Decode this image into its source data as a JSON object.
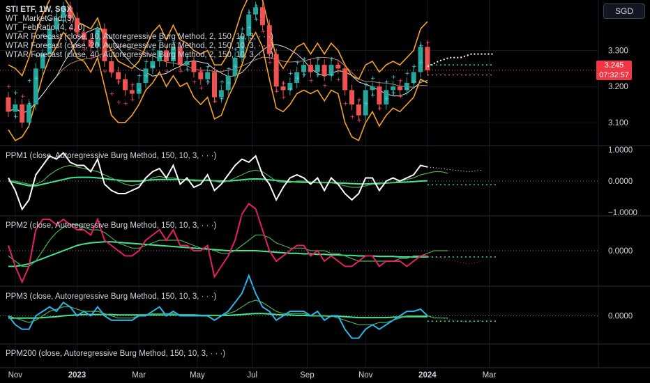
{
  "header": {
    "symbol_title": "STI ETF, 1W, SGX",
    "indicators": [
      "WT_MarketGrid (3)",
      "WT_FebRatio (4, 4, 0)",
      "WTAR Forecast (close, 10, Autoregressive Burg Method, 2, 150, 10, 3, · · ·)",
      "WTAR Forecast (close, 20, Autoregressive Burg Method, 2, 150, 10, 3, · · ·)",
      "WTAR Forecast (close, 40, Autoregressive Burg Method, 2, 150, 10, 3, · · ·)"
    ],
    "currency": "SGD"
  },
  "price_badge": {
    "price": "3.245",
    "countdown": "07:32:57",
    "color": "#f23645"
  },
  "panes": [
    {
      "id": "PPM1",
      "label": "PPM1 (close, Autoregressive Burg Method, 150, 10, 3, · · ·)",
      "ticks": [
        "1.0000",
        "0.0000",
        "−1.0000"
      ]
    },
    {
      "id": "PPM2",
      "label": "PPM2 (close, Autoregressive Burg Method, 150, 10, 3, · · ·)",
      "ticks": [
        "0.0000"
      ]
    },
    {
      "id": "PPM3",
      "label": "PPM3 (close, Autoregressive Burg Method, 150, 10, 3, · · ·)",
      "ticks": [
        "0.0000"
      ]
    },
    {
      "id": "PPM200",
      "label": "PPM200 (close, Autoregressive Burg Method, 150, 10, 3, · · ·)",
      "ticks": []
    }
  ],
  "colors": {
    "up": "#26a69a",
    "down": "#ef5350",
    "envelope": "#f7a325",
    "ppm1": "#ffffff",
    "ppm2": "#e91e63",
    "ppm3": "#2cb5e8",
    "green_light": "#43e695",
    "green_dark": "#4caf50",
    "background": "#000000",
    "axis_text": "#d1d4dc"
  },
  "chart_data": {
    "type": "candlestick",
    "price_axis": {
      "ticks": [
        3.1,
        3.2,
        3.3
      ],
      "tick_labels": [
        "3.100",
        "3.200",
        "3.300"
      ],
      "range": [
        3.04,
        3.44
      ]
    },
    "x_axis": {
      "labels": [
        "Nov",
        "2023",
        "Mar",
        "May",
        "Jul",
        "Sep",
        "Nov",
        "2024",
        "Mar"
      ],
      "bold": [
        "2023",
        "2024"
      ],
      "label_weeks": [
        1,
        10,
        19,
        27.5,
        35.5,
        43.5,
        52,
        61,
        70
      ]
    },
    "weekly_close": [
      3.13,
      3.15,
      3.1,
      3.15,
      3.25,
      3.29,
      3.36,
      3.39,
      3.42,
      3.39,
      3.35,
      3.33,
      3.31,
      3.36,
      3.27,
      3.24,
      3.22,
      3.19,
      3.18,
      3.21,
      3.25,
      3.27,
      3.3,
      3.27,
      3.31,
      3.26,
      3.27,
      3.24,
      3.22,
      3.24,
      3.17,
      3.19,
      3.23,
      3.28,
      3.34,
      3.4,
      3.42,
      3.37,
      3.29,
      3.2,
      3.19,
      3.21,
      3.24,
      3.26,
      3.24,
      3.26,
      3.23,
      3.26,
      3.25,
      3.19,
      3.15,
      3.12,
      3.19,
      3.2,
      3.15,
      3.19,
      3.2,
      3.19,
      3.21,
      3.24,
      3.31,
      3.245
    ],
    "forecast_close": [
      3.26,
      3.27,
      3.27,
      3.28,
      3.28,
      3.28
    ],
    "envelope_upper": [
      3.26,
      3.25,
      3.23,
      3.28,
      3.35,
      3.4,
      3.44,
      3.46,
      3.45,
      3.42,
      3.38,
      3.37,
      3.36,
      3.39,
      3.33,
      3.3,
      3.27,
      3.26,
      3.25,
      3.27,
      3.31,
      3.35,
      3.37,
      3.33,
      3.37,
      3.33,
      3.32,
      3.3,
      3.29,
      3.3,
      3.26,
      3.26,
      3.29,
      3.35,
      3.41,
      3.45,
      3.46,
      3.44,
      3.36,
      3.28,
      3.25,
      3.28,
      3.31,
      3.32,
      3.29,
      3.32,
      3.29,
      3.32,
      3.3,
      3.26,
      3.23,
      3.22,
      3.26,
      3.27,
      3.24,
      3.26,
      3.27,
      3.26,
      3.28,
      3.3,
      3.36,
      3.38
    ],
    "envelope_lower": [
      3.08,
      3.05,
      3.06,
      3.09,
      3.16,
      3.23,
      3.28,
      3.31,
      3.35,
      3.33,
      3.28,
      3.27,
      3.24,
      3.28,
      3.2,
      3.12,
      3.1,
      3.1,
      3.12,
      3.15,
      3.19,
      3.21,
      3.24,
      3.2,
      3.23,
      3.2,
      3.21,
      3.17,
      3.15,
      3.17,
      3.11,
      3.12,
      3.17,
      3.21,
      3.26,
      3.32,
      3.35,
      3.31,
      3.22,
      3.14,
      3.13,
      3.15,
      3.18,
      3.19,
      3.18,
      3.19,
      3.16,
      3.19,
      3.18,
      3.1,
      3.06,
      3.05,
      3.1,
      3.13,
      3.09,
      3.12,
      3.14,
      3.13,
      3.15,
      3.17,
      3.22,
      3.21
    ],
    "ppm1": {
      "range": [
        -1,
        1
      ],
      "series": [
        {
          "values": [
            0.1,
            -0.3,
            -0.9,
            -0.6,
            0.2,
            0.5,
            0.8,
            0.7,
            0.9,
            0.6,
            0.5,
            0.5,
            0.3,
            0.7,
            -0.1,
            -0.3,
            -0.4,
            -0.4,
            -0.3,
            -0.2,
            0.1,
            0.3,
            0.4,
            0.1,
            0.5,
            -0.1,
            0.1,
            -0.2,
            -0.1,
            0.2,
            -0.3,
            -0.1,
            0.2,
            0.5,
            0.7,
            0.6,
            0.8,
            0.2,
            -0.1,
            -0.6,
            -0.2,
            0.1,
            0.2,
            0.1,
            -0.1,
            0.1,
            -0.3,
            0.1,
            -0.1,
            -0.4,
            -0.6,
            -0.4,
            0.1,
            0.1,
            -0.3,
            0.0,
            0.1,
            0.0,
            0.1,
            0.2,
            0.5,
            0.45
          ]
        },
        {
          "values": [
            0.0,
            0.0,
            -0.05,
            -0.1,
            -0.1,
            0.0,
            0.2,
            0.35,
            0.45,
            0.5,
            0.45,
            0.4,
            0.35,
            0.3,
            0.2,
            0.1,
            0.0,
            -0.1,
            -0.15,
            -0.1,
            0.0,
            0.1,
            0.15,
            0.1,
            0.1,
            0.05,
            0.05,
            0.0,
            0.0,
            0.05,
            0.0,
            -0.05,
            0.0,
            0.1,
            0.2,
            0.3,
            0.35,
            0.3,
            0.15,
            0.0,
            -0.05,
            -0.05,
            0.0,
            0.0,
            -0.05,
            -0.05,
            -0.05,
            -0.05,
            -0.1,
            -0.15,
            -0.2,
            -0.2,
            -0.15,
            -0.1,
            -0.1,
            -0.05,
            -0.05,
            0.0,
            0.05,
            0.1,
            0.2,
            0.25,
            0.3,
            0.3,
            0.25
          ]
        },
        {
          "values": [
            0.0,
            -0.05,
            -0.1,
            -0.15,
            -0.15,
            -0.1,
            -0.05,
            0.0,
            0.05,
            0.1,
            0.12,
            0.12,
            0.12,
            0.1,
            0.08,
            0.05,
            0.03,
            0.0,
            0.0,
            0.0,
            0.02,
            0.04,
            0.05,
            0.05,
            0.05,
            0.05,
            0.04,
            0.03,
            0.02,
            0.02,
            0.01,
            0.0,
            0.0,
            0.02,
            0.04,
            0.06,
            0.07,
            0.06,
            0.04,
            0.02,
            0.0,
            -0.02,
            -0.03,
            -0.04,
            -0.04,
            -0.05,
            -0.05,
            -0.05,
            -0.06,
            -0.07,
            -0.08,
            -0.09,
            -0.09,
            -0.08,
            -0.07,
            -0.06,
            -0.05,
            -0.04,
            -0.03,
            -0.02,
            0.0,
            0.01
          ]
        }
      ]
    },
    "ppm2": {
      "series": [
        {
          "values": [
            0.1,
            -0.3,
            -0.6,
            -0.3,
            0.4,
            0.6,
            0.6,
            0.5,
            0.6,
            0.5,
            0.4,
            0.4,
            0.3,
            0.6,
            0.2,
            0.1,
            0.0,
            -0.1,
            -0.1,
            0.0,
            0.2,
            0.3,
            0.4,
            0.2,
            0.4,
            0.1,
            0.1,
            0.0,
            0.0,
            0.1,
            -0.5,
            -0.3,
            -0.1,
            0.2,
            0.7,
            0.9,
            0.8,
            0.4,
            0.0,
            -0.2,
            -0.1,
            0.0,
            0.1,
            0.1,
            -0.1,
            0.0,
            -0.2,
            -0.1,
            -0.2,
            -0.3,
            -0.3,
            -0.2,
            -0.1,
            -0.1,
            -0.3,
            -0.2,
            -0.2,
            -0.2,
            -0.3,
            -0.2,
            -0.1,
            -0.1
          ]
        },
        {
          "values": [
            -0.1,
            -0.2,
            -0.3,
            -0.3,
            -0.2,
            0.0,
            0.2,
            0.35,
            0.45,
            0.5,
            0.5,
            0.45,
            0.4,
            0.4,
            0.35,
            0.25,
            0.15,
            0.1,
            0.05,
            0.05,
            0.1,
            0.15,
            0.2,
            0.2,
            0.2,
            0.2,
            0.15,
            0.1,
            0.05,
            0.05,
            0.0,
            -0.05,
            -0.05,
            0.0,
            0.1,
            0.2,
            0.3,
            0.3,
            0.25,
            0.15,
            0.1,
            0.05,
            0.05,
            0.05,
            0.0,
            0.0,
            0.0,
            -0.05,
            -0.05,
            -0.1,
            -0.15,
            -0.2,
            -0.2,
            -0.2,
            -0.2,
            -0.2,
            -0.2,
            -0.15,
            -0.15,
            -0.1,
            -0.1,
            -0.05,
            0.0,
            0.0,
            0.0
          ]
        },
        {
          "values": [
            -0.3,
            -0.3,
            -0.28,
            -0.25,
            -0.2,
            -0.15,
            -0.1,
            -0.05,
            0.0,
            0.05,
            0.1,
            0.13,
            0.15,
            0.16,
            0.17,
            0.17,
            0.16,
            0.15,
            0.14,
            0.13,
            0.12,
            0.11,
            0.1,
            0.09,
            0.08,
            0.07,
            0.06,
            0.05,
            0.04,
            0.03,
            0.02,
            0.01,
            0.0,
            0.0,
            0.0,
            0.0,
            0.0,
            -0.01,
            -0.02,
            -0.03,
            -0.04,
            -0.05,
            -0.05,
            -0.06,
            -0.06,
            -0.07,
            -0.07,
            -0.08,
            -0.08,
            -0.09,
            -0.09,
            -0.1,
            -0.1,
            -0.1,
            -0.11,
            -0.11,
            -0.11,
            -0.12,
            -0.12,
            -0.12,
            -0.12,
            -0.12
          ]
        }
      ]
    },
    "ppm3": {
      "series": [
        {
          "values": [
            0.0,
            -0.2,
            -0.3,
            -0.3,
            0.0,
            0.1,
            0.2,
            0.1,
            0.3,
            0.2,
            0.0,
            0.1,
            0.0,
            0.2,
            0.0,
            -0.1,
            -0.1,
            -0.1,
            -0.1,
            0.0,
            0.0,
            0.1,
            0.2,
            0.0,
            0.1,
            0.0,
            0.0,
            0.0,
            0.0,
            0.0,
            -0.1,
            0.0,
            0.1,
            0.3,
            0.5,
            0.9,
            0.5,
            0.2,
            0.1,
            -0.1,
            0.0,
            0.1,
            0.1,
            0.1,
            0.0,
            0.1,
            -0.1,
            0.0,
            0.0,
            -0.3,
            -0.5,
            -0.5,
            -0.3,
            -0.2,
            -0.3,
            -0.2,
            -0.1,
            0.0,
            0.1,
            0.1,
            0.15,
            0.0
          ]
        },
        {
          "values": [
            0.0,
            -0.05,
            -0.1,
            -0.15,
            -0.1,
            0.0,
            0.1,
            0.15,
            0.2,
            0.2,
            0.15,
            0.1,
            0.1,
            0.1,
            0.05,
            0.0,
            -0.05,
            -0.05,
            -0.05,
            0.0,
            0.0,
            0.05,
            0.05,
            0.05,
            0.05,
            0.0,
            0.0,
            0.0,
            0.0,
            0.0,
            0.0,
            0.0,
            0.05,
            0.1,
            0.2,
            0.3,
            0.35,
            0.3,
            0.2,
            0.1,
            0.05,
            0.05,
            0.05,
            0.05,
            0.0,
            0.0,
            0.0,
            0.0,
            -0.05,
            -0.1,
            -0.15,
            -0.2,
            -0.2,
            -0.2,
            -0.15,
            -0.15,
            -0.1,
            -0.05,
            0.0,
            0.0,
            0.0,
            0.0,
            -0.05,
            -0.05,
            -0.05
          ]
        },
        {
          "values": [
            -0.05,
            -0.05,
            -0.05,
            -0.05,
            -0.05,
            -0.04,
            -0.03,
            -0.02,
            0.0,
            0.01,
            0.02,
            0.03,
            0.03,
            0.03,
            0.03,
            0.03,
            0.02,
            0.02,
            0.02,
            0.02,
            0.02,
            0.02,
            0.02,
            0.02,
            0.02,
            0.02,
            0.02,
            0.02,
            0.01,
            0.01,
            0.01,
            0.01,
            0.01,
            0.02,
            0.03,
            0.04,
            0.05,
            0.05,
            0.04,
            0.03,
            0.02,
            0.02,
            0.01,
            0.01,
            0.0,
            0.0,
            0.0,
            -0.01,
            -0.01,
            -0.02,
            -0.03,
            -0.04,
            -0.04,
            -0.04,
            -0.04,
            -0.04,
            -0.03,
            -0.03,
            -0.02,
            -0.02,
            -0.02,
            -0.02
          ]
        }
      ]
    }
  }
}
